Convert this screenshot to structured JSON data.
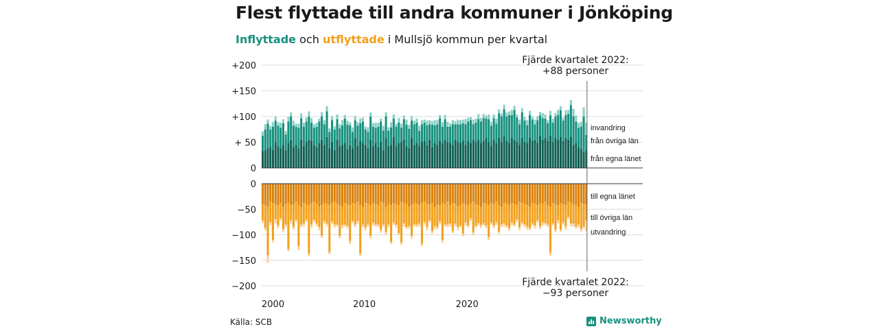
{
  "header": {
    "title": "Flest flyttade till andra kommuner i Jönköping",
    "subtitle_in": "Inflyttade",
    "subtitle_mid": " och ",
    "subtitle_out": "utflyttade",
    "subtitle_rest": " i Mullsjö kommun per kvartal"
  },
  "footer": {
    "source": "Källa: SCB",
    "brand": "Newsworthy"
  },
  "colors": {
    "in_dark": "#0e5f52",
    "in_mid": "#17907f",
    "in_light": "#8ad0c4",
    "out_dark": "#d9810b",
    "out_mid": "#f2a01b",
    "out_light": "#fbd09a",
    "accent_teal": "#17907f",
    "accent_orange": "#f2a01b",
    "grid": "#dcdcdc"
  },
  "chart_data": {
    "type": "bar",
    "x_start": "2000 Q1",
    "x_ticks": [
      "2000",
      "2010",
      "2020"
    ],
    "top_ylim": [
      0,
      200
    ],
    "top_ticks": [
      "+200",
      "+150",
      "+100",
      "+ 50",
      "0"
    ],
    "bottom_ylim": [
      -200,
      0
    ],
    "bottom_ticks": [
      "0",
      "−50",
      "−100",
      "−150",
      "−200"
    ],
    "legend_top": [
      "invandring",
      "från övriga län",
      "från egna länet"
    ],
    "legend_bottom": [
      "till egna länet",
      "till övriga län",
      "utvandring"
    ],
    "annotation_top": [
      "Fjärde kvartalet 2022:",
      "+88 personer"
    ],
    "annotation_bottom": [
      "Fjärde kvartalet 2022:",
      "−93 personer"
    ],
    "inflyttade": {
      "series": [
        {
          "name": "från egna länet",
          "values": [
            33,
            35,
            38,
            40,
            35,
            50,
            42,
            38,
            45,
            35,
            48,
            55,
            40,
            45,
            38,
            55,
            42,
            50,
            55,
            52,
            45,
            40,
            48,
            55,
            45,
            60,
            38,
            50,
            35,
            55,
            42,
            45,
            48,
            36,
            45,
            38,
            58,
            42,
            52,
            48,
            45,
            38,
            55,
            42,
            48,
            40,
            50,
            35,
            58,
            42,
            45,
            60,
            42,
            48,
            50,
            55,
            42,
            38,
            58,
            45,
            48,
            42,
            50,
            52,
            45,
            55,
            40,
            48,
            45,
            52,
            48,
            55,
            50,
            48,
            45,
            55,
            50,
            48,
            52,
            45,
            52,
            48,
            55,
            50,
            55,
            48,
            52,
            58,
            50,
            42,
            55,
            48,
            58,
            50,
            62,
            52,
            48,
            58,
            55,
            50,
            45,
            58,
            50,
            48,
            58,
            52,
            55,
            48,
            62,
            55,
            58,
            52,
            62,
            50,
            58,
            55,
            60,
            52,
            58,
            55,
            60,
            45,
            48,
            40,
            36,
            30,
            34
          ]
        },
        {
          "name": "från övriga län",
          "values": [
            30,
            40,
            48,
            35,
            45,
            42,
            40,
            40,
            42,
            30,
            42,
            45,
            42,
            35,
            40,
            42,
            38,
            40,
            45,
            36,
            33,
            40,
            42,
            45,
            40,
            50,
            32,
            43,
            40,
            40,
            35,
            38,
            48,
            48,
            38,
            32,
            35,
            40,
            35,
            42,
            30,
            32,
            45,
            38,
            30,
            40,
            40,
            38,
            42,
            30,
            34,
            36,
            38,
            40,
            28,
            40,
            42,
            38,
            34,
            40,
            40,
            30,
            35,
            36,
            38,
            30,
            44,
            35,
            40,
            45,
            32,
            40,
            30,
            32,
            40,
            30,
            35,
            37,
            35,
            40,
            38,
            45,
            30,
            38,
            40,
            42,
            45,
            38,
            45,
            40,
            42,
            38,
            48,
            50,
            52,
            48,
            55,
            45,
            58,
            48,
            40,
            50,
            42,
            35,
            45,
            42,
            30,
            45,
            40,
            42,
            38,
            35,
            40,
            38,
            42,
            48,
            52,
            40,
            45,
            50,
            62,
            55,
            42,
            38,
            45,
            70,
            30
          ]
        },
        {
          "name": "invandring",
          "values": [
            8,
            10,
            8,
            7,
            9,
            8,
            7,
            10,
            8,
            7,
            9,
            8,
            10,
            6,
            8,
            9,
            8,
            8,
            10,
            9,
            7,
            8,
            6,
            9,
            8,
            10,
            7,
            8,
            6,
            9,
            8,
            10,
            7,
            8,
            6,
            9,
            8,
            7,
            9,
            8,
            6,
            9,
            8,
            7,
            10,
            8,
            6,
            9,
            8,
            7,
            10,
            8,
            6,
            9,
            8,
            7,
            10,
            8,
            9,
            7,
            8,
            10,
            8,
            6,
            9,
            8,
            7,
            10,
            8,
            6,
            9,
            8,
            10,
            7,
            8,
            6,
            9,
            8,
            7,
            10,
            8,
            6,
            9,
            8,
            10,
            7,
            8,
            6,
            9,
            8,
            7,
            10,
            8,
            6,
            9,
            8,
            7,
            10,
            8,
            6,
            9,
            8,
            7,
            10,
            8,
            6,
            9,
            8,
            7,
            10,
            8,
            6,
            9,
            8,
            7,
            10,
            8,
            6,
            9,
            8,
            10,
            15,
            12,
            10,
            9,
            18,
            24
          ]
        }
      ]
    },
    "utflyttade": {
      "series": [
        {
          "name": "till egna länet",
          "values": [
            -40,
            -42,
            -45,
            -35,
            -38,
            -40,
            -42,
            -38,
            -45,
            -40,
            -38,
            -42,
            -40,
            -35,
            -42,
            -45,
            -38,
            -40,
            -42,
            -38,
            -35,
            -40,
            -45,
            -42,
            -38,
            -40,
            -42,
            -38,
            -35,
            -40,
            -42,
            -45,
            -38,
            -40,
            -42,
            -38,
            -40,
            -35,
            -42,
            -45,
            -38,
            -40,
            -42,
            -38,
            -40,
            -42,
            -35,
            -38,
            -45,
            -40,
            -42,
            -38,
            -40,
            -42,
            -35,
            -38,
            -40,
            -45,
            -42,
            -38,
            -40,
            -42,
            -38,
            -35,
            -40,
            -42,
            -38,
            -45,
            -40,
            -42,
            -38,
            -40,
            -35,
            -42,
            -38,
            -40,
            -45,
            -42,
            -38,
            -40,
            -42,
            -38,
            -35,
            -40,
            -42,
            -45,
            -38,
            -40,
            -42,
            -38,
            -40,
            -35,
            -42,
            -45,
            -38,
            -40,
            -42,
            -38,
            -40,
            -42,
            -35,
            -38,
            -40,
            -42,
            -45,
            -38,
            -40,
            -42,
            -38,
            -40,
            -35,
            -42,
            -45,
            -38,
            -40,
            -42,
            -38,
            -40,
            -42,
            -35,
            -38,
            -40,
            -42,
            -45,
            -38,
            -40,
            -42
          ]
        },
        {
          "name": "till övriga län",
          "values": [
            -32,
            -45,
            -95,
            -40,
            -72,
            -30,
            -40,
            -30,
            -44,
            -40,
            -90,
            -30,
            -45,
            -36,
            -80,
            -35,
            -40,
            -30,
            -95,
            -42,
            -36,
            -38,
            -40,
            -60,
            -35,
            -38,
            -92,
            -36,
            -45,
            -40,
            -60,
            -36,
            -42,
            -43,
            -70,
            -35,
            -40,
            -38,
            -95,
            -35,
            -48,
            -40,
            -60,
            -38,
            -40,
            -38,
            -55,
            -42,
            -50,
            -40,
            -72,
            -38,
            -40,
            -55,
            -80,
            -40,
            -45,
            -38,
            -60,
            -42,
            -40,
            -36,
            -80,
            -40,
            -45,
            -30,
            -55,
            -38,
            -45,
            -32,
            -72,
            -40,
            -45,
            -36,
            -55,
            -38,
            -40,
            -40,
            -60,
            -36,
            -40,
            -30,
            -60,
            -42,
            -35,
            -36,
            -40,
            -42,
            -62,
            -38,
            -42,
            -40,
            -52,
            -35,
            -40,
            -42,
            -45,
            -38,
            -40,
            -28,
            -50,
            -38,
            -40,
            -42,
            -42,
            -40,
            -42,
            -30,
            -46,
            -36,
            -42,
            -38,
            -90,
            -40,
            -50,
            -30,
            -52,
            -36,
            -42,
            -30,
            -40,
            -38,
            -42,
            -35,
            -50,
            -44,
            -30
          ]
        },
        {
          "name": "utvandring",
          "values": [
            -5,
            -4,
            -15,
            -6,
            -5,
            -8,
            -5,
            -4,
            -6,
            -5,
            -4,
            -6,
            -5,
            -4,
            -8,
            -5,
            -6,
            -4,
            -5,
            -6,
            -4,
            -5,
            -6,
            -4,
            -5,
            -6,
            -4,
            -5,
            -6,
            -4,
            -5,
            -6,
            -4,
            -5,
            -6,
            -4,
            -5,
            -6,
            -4,
            -5,
            -6,
            -4,
            -5,
            -6,
            -4,
            -5,
            -6,
            -4,
            -5,
            -6,
            -4,
            -5,
            -6,
            -4,
            -5,
            -6,
            -4,
            -5,
            -6,
            -4,
            -5,
            -6,
            -4,
            -5,
            -6,
            -4,
            -5,
            -6,
            -4,
            -5,
            -6,
            -4,
            -5,
            -6,
            -4,
            -5,
            -6,
            -4,
            -5,
            -6,
            -4,
            -5,
            -6,
            -4,
            -5,
            -6,
            -4,
            -5,
            -6,
            -4,
            -5,
            -6,
            -4,
            -5,
            -6,
            -4,
            -5,
            -6,
            -4,
            -5,
            -6,
            -4,
            -5,
            -6,
            -4,
            -5,
            -6,
            -4,
            -5,
            -6,
            -4,
            -5,
            -6,
            -4,
            -5,
            -6,
            -4,
            -5,
            -6,
            -4,
            -5,
            -6,
            -4,
            -5,
            -6,
            -4,
            -21
          ]
        }
      ]
    }
  }
}
